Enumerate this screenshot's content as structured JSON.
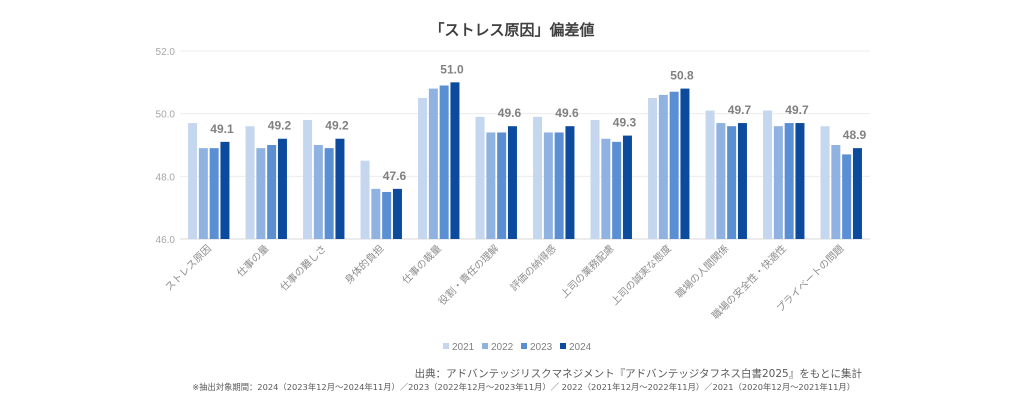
{
  "chart_data": {
    "type": "bar",
    "title": "「ストレス原因」偏差値",
    "xlabel": "",
    "ylabel": "",
    "ylim": [
      46.0,
      52.0
    ],
    "yticks": [
      "46.0",
      "48.0",
      "50.0",
      "52.0"
    ],
    "grid": true,
    "legend_position": "bottom",
    "categories": [
      "ストレス原因",
      "仕事の量",
      "仕事の難しさ",
      "身体的負担",
      "仕事の裁量",
      "役割・責任の理解",
      "評価の納得感",
      "上司の業務配慮",
      "上司の誠実な態度",
      "職場の人間関係",
      "職場の安全性・快適性",
      "プライベートの問題"
    ],
    "series": [
      {
        "name": "2021",
        "color": "#c5d7ee",
        "values": [
          49.7,
          49.6,
          49.8,
          48.5,
          50.5,
          49.9,
          49.9,
          49.8,
          50.5,
          50.1,
          50.1,
          49.6
        ]
      },
      {
        "name": "2022",
        "color": "#8fb2e0",
        "values": [
          48.9,
          48.9,
          49.0,
          47.6,
          50.8,
          49.4,
          49.4,
          49.2,
          50.6,
          49.7,
          49.6,
          49.0
        ]
      },
      {
        "name": "2023",
        "color": "#5b8fd3",
        "values": [
          48.9,
          49.0,
          48.9,
          47.5,
          50.9,
          49.4,
          49.4,
          49.1,
          50.7,
          49.6,
          49.7,
          48.7
        ]
      },
      {
        "name": "2024",
        "color": "#0b4a9c",
        "values": [
          49.1,
          49.2,
          49.2,
          47.6,
          51.0,
          49.6,
          49.6,
          49.3,
          50.8,
          49.7,
          49.7,
          48.9
        ]
      }
    ],
    "data_labels": [
      "49.1",
      "49.2",
      "49.2",
      "47.6",
      "51.0",
      "49.6",
      "49.6",
      "49.3",
      "50.8",
      "49.7",
      "49.7",
      "48.9"
    ]
  },
  "source": "出典：アドバンテッジリスクマネジメント『アドバンテッジタフネス白書2025』をもとに集計",
  "note": "※抽出対象期間：2024（2023年12月～2024年11月）／2023（2022年12月～2023年11月）／ 2022（2021年12月～2022年11月）／2021（2020年12月～2021年11月）"
}
